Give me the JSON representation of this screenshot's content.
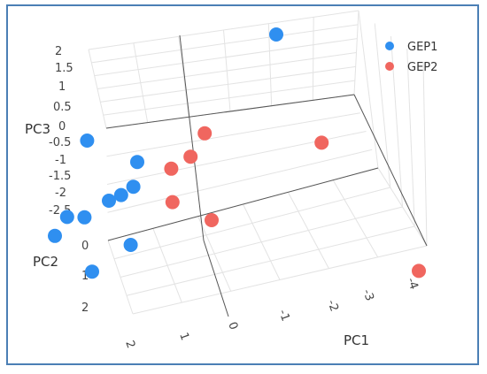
{
  "chart_data": {
    "type": "scatter",
    "projection": "3d",
    "axes": {
      "x": {
        "label": "PC1",
        "ticks": [
          "2",
          "1",
          "0",
          "-1",
          "-2",
          "-3",
          "-4"
        ]
      },
      "y": {
        "label": "PC2",
        "ticks": [
          "0",
          "1",
          "2"
        ]
      },
      "z": {
        "label": "PC3",
        "ticks": [
          "2",
          "1.5",
          "1",
          "0.5",
          "0",
          "-0.5",
          "-1",
          "-1.5",
          "-2",
          "-2.5"
        ]
      }
    },
    "grid": true,
    "legend_position": "top-right",
    "series": [
      {
        "name": "GEP1",
        "color": "#2f8ff0",
        "points": [
          {
            "pc1": -1.0,
            "pc2": -1.0,
            "pc3": 2.2
          },
          {
            "pc1": 2.0,
            "pc2": 0.8,
            "pc3": 0.4
          },
          {
            "pc1": 1.1,
            "pc2": 0.6,
            "pc3": -0.5
          },
          {
            "pc1": 1.1,
            "pc2": 0.8,
            "pc3": -1.1
          },
          {
            "pc1": 1.3,
            "pc2": 0.9,
            "pc3": -1.3
          },
          {
            "pc1": 1.5,
            "pc2": 1.0,
            "pc3": -1.4
          },
          {
            "pc1": 2.2,
            "pc2": 1.3,
            "pc3": -1.7
          },
          {
            "pc1": 1.9,
            "pc2": 1.2,
            "pc3": -1.8
          },
          {
            "pc1": 2.4,
            "pc2": 1.4,
            "pc3": -2.3
          },
          {
            "pc1": 1.0,
            "pc2": 1.2,
            "pc3": -2.6
          },
          {
            "pc1": 1.6,
            "pc2": 1.6,
            "pc3": -3.1
          }
        ]
      },
      {
        "name": "GEP2",
        "color": "#f0665f",
        "points": [
          {
            "pc1": -0.1,
            "pc2": 0.3,
            "pc3": 0.4
          },
          {
            "pc1": 0.1,
            "pc2": 0.5,
            "pc3": -0.2
          },
          {
            "pc1": 0.4,
            "pc2": 0.7,
            "pc3": -0.4
          },
          {
            "pc1": 0.3,
            "pc2": 0.9,
            "pc3": -1.3
          },
          {
            "pc1": -0.5,
            "pc2": 1.0,
            "pc3": -1.6
          },
          {
            "pc1": -2.3,
            "pc2": 0.1,
            "pc3": 0.3
          },
          {
            "pc1": -4.8,
            "pc2": 1.7,
            "pc3": -1.2
          }
        ]
      }
    ]
  }
}
